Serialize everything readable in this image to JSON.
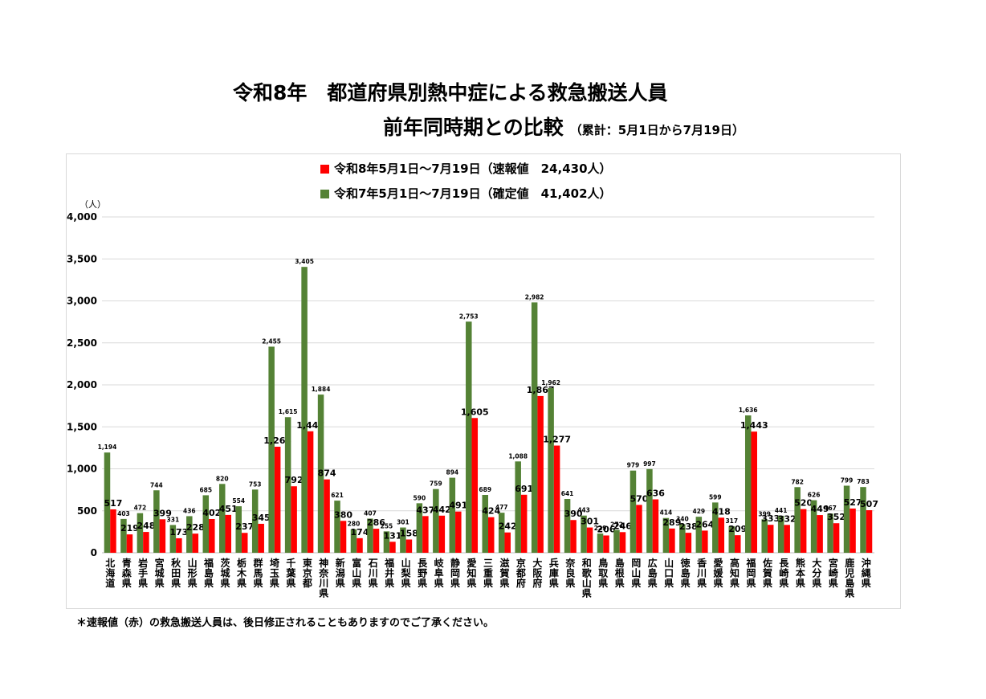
{
  "title": {
    "line1": "令和8年　都道府県別熱中症による救急搬送人員",
    "line2": "前年同時期との比較",
    "period": "（累計：5月1日から7月19日）"
  },
  "footnote": "＊速報値（赤）の救急搬送人員は、後日修正されることもありますのでご了承ください。",
  "colors": {
    "current": "#ff0000",
    "previous": "#548235",
    "grid": "#d9d9d9"
  },
  "chart_data": {
    "type": "bar",
    "ylabel": "（人）",
    "ylim": [
      0,
      4000
    ],
    "yticks": [
      "0",
      "500",
      "1,000",
      "1,500",
      "2,000",
      "2,500",
      "3,000",
      "3,500",
      "4,000"
    ],
    "grid": true,
    "legend_position": "top",
    "categories": [
      "北海道",
      "青森県",
      "岩手県",
      "宮城県",
      "秋田県",
      "山形県",
      "福島県",
      "茨城県",
      "栃木県",
      "群馬県",
      "埼玉県",
      "千葉県",
      "東京都",
      "神奈川県",
      "新潟県",
      "富山県",
      "石川県",
      "福井県",
      "山梨県",
      "長野県",
      "岐阜県",
      "静岡県",
      "愛知県",
      "三重県",
      "滋賀県",
      "京都府",
      "大阪府",
      "兵庫県",
      "奈良県",
      "和歌山県",
      "鳥取県",
      "島根県",
      "岡山県",
      "広島県",
      "山口県",
      "徳島県",
      "香川県",
      "愛媛県",
      "高知県",
      "福岡県",
      "佐賀県",
      "長崎県",
      "熊本県",
      "大分県",
      "宮崎県",
      "鹿児島県",
      "沖縄県"
    ],
    "series": [
      {
        "name": "令和7年5月1日～7月19日（確定値　41,402人）",
        "values": [
          1194,
          403,
          472,
          744,
          331,
          436,
          685,
          820,
          554,
          753,
          2455,
          1615,
          3405,
          1884,
          621,
          280,
          407,
          255,
          301,
          590,
          759,
          894,
          2753,
          689,
          477,
          1088,
          2982,
          1962,
          641,
          443,
          229,
          272,
          979,
          997,
          414,
          340,
          429,
          599,
          317,
          1636,
          399,
          441,
          782,
          626,
          467,
          799,
          783
        ],
        "labels": [
          "1,194",
          "403",
          "472",
          "744",
          "331",
          "436",
          "685",
          "820",
          "554",
          "753",
          "2,455",
          "1,615",
          "3,405",
          "1,884",
          "621",
          "280",
          "407",
          "255",
          "301",
          "590",
          "759",
          "894",
          "2,753",
          "689",
          "477",
          "1,088",
          "2,982",
          "1,962",
          "641",
          "443",
          "229",
          "272",
          "979",
          "997",
          "414",
          "340",
          "429",
          "599",
          "317",
          "1,636",
          "399",
          "441",
          "782",
          "626",
          "467",
          "799",
          "783"
        ]
      },
      {
        "name": "令和8年5月1日～7月19日（速報値　24,430人）",
        "values": [
          517,
          219,
          248,
          399,
          173,
          228,
          402,
          451,
          237,
          345,
          1263,
          792,
          1447,
          874,
          380,
          174,
          286,
          131,
          158,
          437,
          442,
          491,
          1605,
          424,
          242,
          691,
          1867,
          1277,
          390,
          301,
          206,
          246,
          570,
          636,
          289,
          238,
          264,
          418,
          209,
          1443,
          333,
          332,
          520,
          449,
          352,
          527,
          507
        ],
        "labels": [
          "517",
          "219",
          "248",
          "399",
          "173",
          "228",
          "402",
          "451",
          "237",
          "345",
          "1,263",
          "792",
          "1,447",
          "874",
          "380",
          "174",
          "286",
          "131",
          "158",
          "437",
          "442",
          "491",
          "1,605",
          "424",
          "242",
          "691",
          "1,867",
          "1,277",
          "390",
          "301",
          "206",
          "246",
          "570",
          "636",
          "289",
          "238",
          "264",
          "418",
          "209",
          "1,443",
          "333",
          "332",
          "520",
          "449",
          "352",
          "527",
          "507"
        ]
      }
    ]
  }
}
